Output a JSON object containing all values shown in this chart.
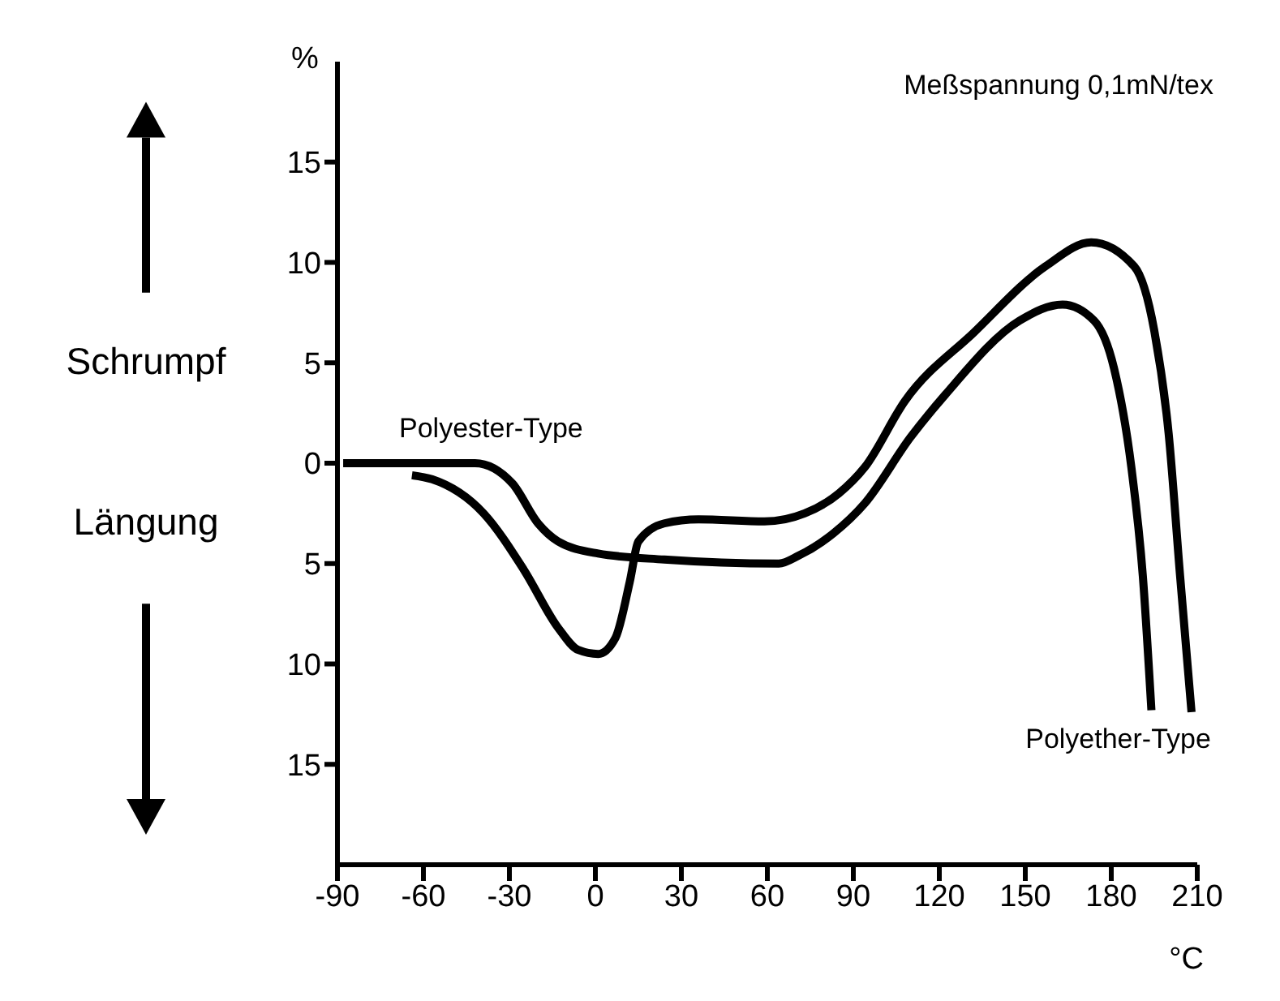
{
  "chart_data": {
    "type": "line",
    "xlabel": "°C",
    "ylabel": "%",
    "xlim": [
      -90,
      210
    ],
    "xticks": [
      -90,
      -60,
      -30,
      0,
      30,
      60,
      90,
      120,
      150,
      180,
      210
    ],
    "ylim": [
      -20,
      20
    ],
    "yticks": [
      15,
      10,
      5,
      0,
      {
        "value": -5,
        "label": "5"
      },
      {
        "value": -10,
        "label": "10"
      },
      {
        "value": -15,
        "label": "15"
      }
    ],
    "annotations": [
      "Meßspannung 0,1mN/tex",
      "Schrumpf",
      "Längung"
    ],
    "series": [
      {
        "name": "Polyester-Type",
        "color": "#000000",
        "x": [
          -88,
          -42,
          -29,
          -20,
          -13,
          1,
          24,
          64,
          71,
          83,
          94,
          110,
          122,
          148,
          163,
          174,
          181,
          187,
          191,
          194
        ],
        "values": [
          0,
          0,
          -1,
          -3,
          -3.9,
          -4.5,
          -4.8,
          -5,
          -4.6,
          -3.5,
          -2,
          1.3,
          3.4,
          7.1,
          7.9,
          7.1,
          4.7,
          -0.2,
          -5.6,
          -12.3
        ]
      },
      {
        "name": "Polyether-Type",
        "color": "#000000",
        "x": [
          -64,
          -57,
          -39,
          -25,
          -13,
          -6,
          1,
          7,
          12,
          15,
          24,
          36,
          59,
          73,
          85,
          94,
          108,
          132,
          157,
          173,
          188,
          195,
          200,
          204,
          208
        ],
        "values": [
          -0.6,
          -0.8,
          -2.5,
          -5.3,
          -8.2,
          -9.3,
          -9.5,
          -8.7,
          -5.9,
          -3.9,
          -3,
          -2.8,
          -2.9,
          -2.5,
          -1.5,
          -0.2,
          3.1,
          6.5,
          9.8,
          11,
          9.8,
          6.6,
          1.5,
          -5.6,
          -12.4
        ]
      }
    ]
  }
}
